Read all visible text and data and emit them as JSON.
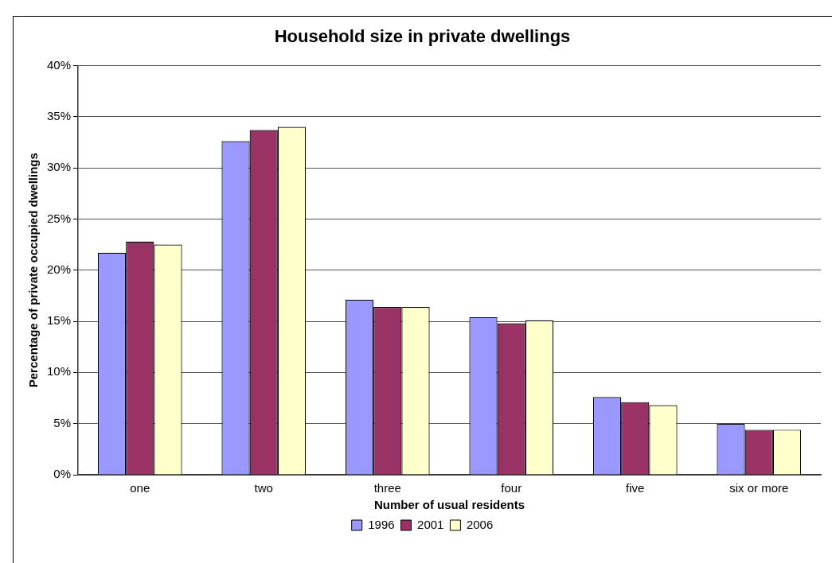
{
  "chart_data": {
    "type": "bar",
    "title": "Household size in private dwellings",
    "xlabel": "Number of usual residents",
    "ylabel": "Percentage of private occupied dwellings",
    "categories": [
      "one",
      "two",
      "three",
      "four",
      "five",
      "six or more"
    ],
    "series": [
      {
        "name": "1996",
        "color": "#9999ff",
        "values": [
          21.7,
          32.6,
          17.1,
          15.4,
          7.6,
          5.0
        ]
      },
      {
        "name": "2001",
        "color": "#993366",
        "values": [
          22.8,
          33.7,
          16.4,
          14.8,
          7.1,
          4.4
        ]
      },
      {
        "name": "2006",
        "color": "#ffffcc",
        "values": [
          22.5,
          34.0,
          16.4,
          15.1,
          6.8,
          4.4
        ]
      }
    ],
    "ylim": [
      0,
      40
    ],
    "yticks": [
      {
        "value": 0,
        "label": "0%"
      },
      {
        "value": 5,
        "label": "5%"
      },
      {
        "value": 10,
        "label": "10%"
      },
      {
        "value": 15,
        "label": "15%"
      },
      {
        "value": 20,
        "label": "20%"
      },
      {
        "value": 25,
        "label": "25%"
      },
      {
        "value": 30,
        "label": "30%"
      },
      {
        "value": 35,
        "label": "35%"
      },
      {
        "value": 40,
        "label": "40%"
      }
    ],
    "grid": "y",
    "legend": "bottom"
  }
}
